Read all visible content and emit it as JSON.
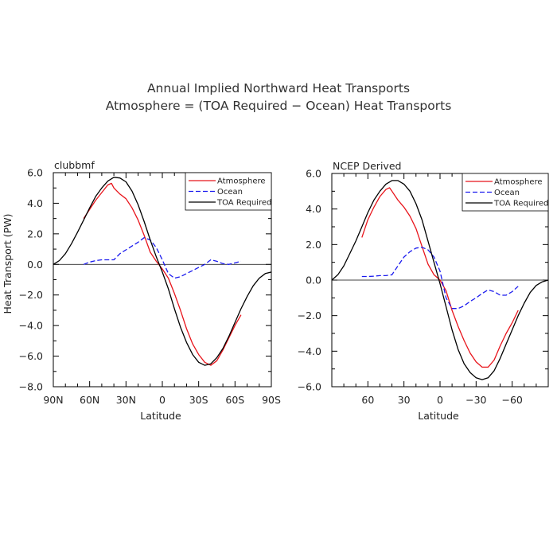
{
  "figure": {
    "title_line1": "Annual Implied Northward Heat Transports",
    "title_line2": "Atmosphere = (TOA Required − Ocean) Heat Transports"
  },
  "chart_data": [
    {
      "type": "line",
      "panel_title": "clubbmf",
      "xlabel": "Latitude",
      "ylabel": "Heat Transport (PW)",
      "xlim": [
        90,
        -90
      ],
      "ylim": [
        -8,
        6
      ],
      "x_ticks": [
        90,
        60,
        30,
        0,
        -30,
        -60,
        -90
      ],
      "x_tick_labels": [
        "90N",
        "60N",
        "30N",
        "0",
        "30S",
        "60S",
        "90S"
      ],
      "y_ticks": [
        6,
        4,
        2,
        0,
        -2,
        -4,
        -6,
        -8
      ],
      "y_tick_labels": [
        "6.0",
        "4.0",
        "2.0",
        "0.0",
        "−2.0",
        "−4.0",
        "−6.0",
        "−8.0"
      ],
      "zero_line": true,
      "legend": {
        "position": "top-right",
        "entries": [
          "Atmosphere",
          "Ocean",
          "TOA Required"
        ]
      },
      "series": [
        {
          "name": "Atmosphere",
          "color": "#e8141b",
          "style": "solid",
          "x": [
            65,
            60,
            55,
            50,
            45,
            42,
            40,
            35,
            30,
            25,
            20,
            15,
            10,
            5,
            0,
            -5,
            -10,
            -15,
            -20,
            -25,
            -30,
            -35,
            -40,
            -45,
            -50,
            -55,
            -60,
            -65
          ],
          "y": [
            3.0,
            3.6,
            4.2,
            4.7,
            5.2,
            5.3,
            5.0,
            4.6,
            4.3,
            3.7,
            2.9,
            1.9,
            0.8,
            0.2,
            -0.3,
            -0.9,
            -1.9,
            -3.0,
            -4.2,
            -5.2,
            -5.9,
            -6.4,
            -6.6,
            -6.3,
            -5.6,
            -4.8,
            -4.0,
            -3.3
          ]
        },
        {
          "name": "Ocean",
          "color": "#1a1aee",
          "style": "dashed",
          "x": [
            65,
            60,
            55,
            50,
            45,
            40,
            35,
            30,
            25,
            20,
            15,
            10,
            5,
            0,
            -5,
            -10,
            -15,
            -20,
            -25,
            -30,
            -35,
            -40,
            -45,
            -50,
            -55,
            -60,
            -65
          ],
          "y": [
            0.0,
            0.15,
            0.25,
            0.3,
            0.3,
            0.3,
            0.7,
            0.95,
            1.2,
            1.45,
            1.75,
            1.6,
            1.1,
            0.3,
            -0.6,
            -0.9,
            -0.8,
            -0.6,
            -0.4,
            -0.2,
            0.0,
            0.3,
            0.2,
            0.05,
            0.0,
            0.1,
            0.2
          ]
        },
        {
          "name": "TOA Required",
          "color": "#000000",
          "style": "solid",
          "x": [
            90,
            85,
            80,
            75,
            70,
            65,
            60,
            55,
            50,
            45,
            40,
            35,
            30,
            25,
            20,
            15,
            10,
            5,
            0,
            -5,
            -10,
            -15,
            -20,
            -25,
            -30,
            -35,
            -40,
            -45,
            -50,
            -55,
            -60,
            -65,
            -70,
            -75,
            -80,
            -85,
            -90
          ],
          "y": [
            0.0,
            0.25,
            0.7,
            1.35,
            2.1,
            2.9,
            3.7,
            4.45,
            5.0,
            5.45,
            5.7,
            5.65,
            5.4,
            4.8,
            3.9,
            2.8,
            1.6,
            0.5,
            -0.5,
            -1.6,
            -2.9,
            -4.1,
            -5.1,
            -5.9,
            -6.4,
            -6.6,
            -6.5,
            -6.1,
            -5.5,
            -4.7,
            -3.8,
            -2.9,
            -2.1,
            -1.4,
            -0.9,
            -0.6,
            -0.5
          ]
        }
      ]
    },
    {
      "type": "line",
      "panel_title": "NCEP Derived",
      "xlabel": "Latitude",
      "ylabel": "",
      "xlim": [
        90,
        -90
      ],
      "ylim": [
        -6,
        6
      ],
      "x_ticks": [
        60,
        30,
        0,
        -30,
        -60
      ],
      "x_tick_labels": [
        "60",
        "30",
        "0",
        "−30",
        "−60"
      ],
      "y_ticks": [
        6,
        4,
        2,
        0,
        -2,
        -4,
        -6
      ],
      "y_tick_labels": [
        "6.0",
        "4.0",
        "2.0",
        "0.0",
        "−2.0",
        "−4.0",
        "−6.0"
      ],
      "zero_line": true,
      "legend": {
        "position": "top-right",
        "entries": [
          "Atmosphere",
          "Ocean",
          "TOA Required"
        ]
      },
      "series": [
        {
          "name": "Atmosphere",
          "color": "#e8141b",
          "style": "solid",
          "x": [
            65,
            60,
            55,
            50,
            45,
            42,
            40,
            35,
            30,
            25,
            20,
            15,
            10,
            5,
            0,
            -5,
            -10,
            -15,
            -20,
            -25,
            -30,
            -35,
            -40,
            -45,
            -50,
            -55,
            -60,
            -65
          ],
          "y": [
            2.4,
            3.4,
            4.1,
            4.7,
            5.1,
            5.2,
            5.0,
            4.5,
            4.1,
            3.6,
            2.9,
            1.9,
            0.9,
            0.3,
            0.0,
            -0.6,
            -1.7,
            -2.6,
            -3.4,
            -4.1,
            -4.6,
            -4.9,
            -4.9,
            -4.5,
            -3.7,
            -3.0,
            -2.4,
            -1.7
          ]
        },
        {
          "name": "Ocean",
          "color": "#1a1aee",
          "style": "dashed",
          "x": [
            65,
            60,
            55,
            50,
            45,
            40,
            35,
            30,
            25,
            20,
            15,
            10,
            5,
            0,
            -5,
            -10,
            -15,
            -20,
            -25,
            -30,
            -35,
            -40,
            -45,
            -50,
            -55,
            -60,
            -65
          ],
          "y": [
            0.2,
            0.2,
            0.22,
            0.25,
            0.25,
            0.3,
            0.8,
            1.3,
            1.6,
            1.8,
            1.85,
            1.7,
            1.3,
            0.5,
            -1.0,
            -1.6,
            -1.6,
            -1.45,
            -1.2,
            -1.0,
            -0.75,
            -0.55,
            -0.65,
            -0.85,
            -0.85,
            -0.65,
            -0.35
          ]
        },
        {
          "name": "TOA Required",
          "color": "#000000",
          "style": "solid",
          "x": [
            90,
            85,
            80,
            75,
            70,
            65,
            60,
            55,
            50,
            45,
            40,
            35,
            30,
            25,
            20,
            15,
            10,
            5,
            0,
            -5,
            -10,
            -15,
            -20,
            -25,
            -30,
            -35,
            -40,
            -45,
            -50,
            -55,
            -60,
            -65,
            -70,
            -75,
            -80,
            -85,
            -90
          ],
          "y": [
            0.0,
            0.3,
            0.8,
            1.5,
            2.2,
            3.0,
            3.8,
            4.5,
            5.0,
            5.4,
            5.6,
            5.6,
            5.4,
            5.0,
            4.3,
            3.4,
            2.2,
            1.0,
            -0.2,
            -1.5,
            -2.8,
            -3.9,
            -4.7,
            -5.2,
            -5.5,
            -5.6,
            -5.5,
            -5.1,
            -4.4,
            -3.6,
            -2.8,
            -2.0,
            -1.3,
            -0.7,
            -0.3,
            -0.1,
            0.0
          ]
        }
      ]
    }
  ]
}
